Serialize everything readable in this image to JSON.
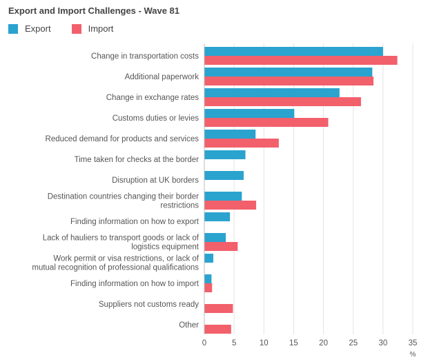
{
  "chart_data": {
    "type": "bar",
    "orientation": "horizontal",
    "title": "Export and Import Challenges - Wave 81",
    "xlabel": "%",
    "ylabel": "",
    "xlim": [
      0,
      35
    ],
    "xticks": [
      0,
      5,
      10,
      15,
      20,
      25,
      30,
      35
    ],
    "grid": "vertical",
    "legend_position": "top-left",
    "categories": [
      "Change in transportation costs",
      "Additional paperwork",
      "Change in exchange rates",
      "Customs duties or levies",
      "Reduced demand for products and services",
      "Time taken for checks at the border",
      "Disruption at UK borders",
      "Destination countries changing their border restrictions",
      "Finding information on how to export",
      "Lack of hauliers to transport goods or lack of logistics equipment",
      "Work permit or visa restrictions, or lack of mutual recognition of professional qualifications",
      "Finding information on how to import",
      "Suppliers not customs ready",
      "Other"
    ],
    "category_lines": [
      [
        "Change in transportation costs"
      ],
      [
        "Additional paperwork"
      ],
      [
        "Change in exchange rates"
      ],
      [
        "Customs duties or levies"
      ],
      [
        "Reduced demand for products and services"
      ],
      [
        "Time taken for checks at the border"
      ],
      [
        "Disruption at UK borders"
      ],
      [
        "Destination countries changing their border",
        "restrictions"
      ],
      [
        "Finding information on how to export"
      ],
      [
        "Lack of hauliers to transport goods or lack of",
        "logistics equipment"
      ],
      [
        "Work permit or visa restrictions, or lack of",
        "mutual recognition of professional qualifications"
      ],
      [
        "Finding information on how to import"
      ],
      [
        "Suppliers not customs ready"
      ],
      [
        "Other"
      ]
    ],
    "series": [
      {
        "name": "Export",
        "color": "#2aa3cf",
        "values": [
          30,
          28.2,
          22.7,
          15.1,
          8.6,
          6.9,
          6.6,
          6.3,
          4.3,
          3.6,
          1.5,
          1.2,
          null,
          null
        ]
      },
      {
        "name": "Import",
        "color": "#f2606b",
        "values": [
          32.4,
          28.4,
          26.3,
          20.8,
          12.5,
          null,
          null,
          8.7,
          null,
          5.6,
          null,
          1.3,
          4.8,
          4.5
        ]
      }
    ]
  }
}
